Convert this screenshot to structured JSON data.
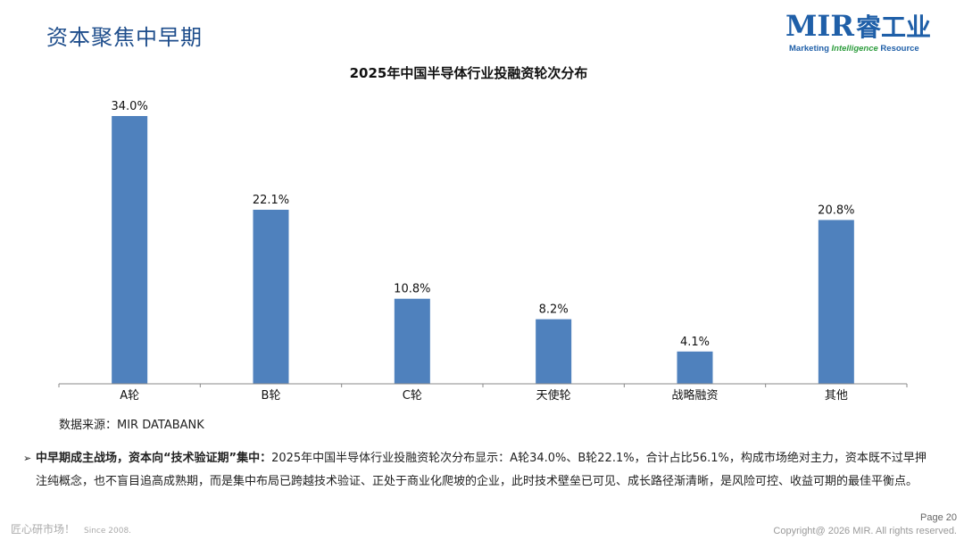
{
  "page": {
    "title": "资本聚焦中早期",
    "logo": {
      "mir": "MIR",
      "cn": "睿工业",
      "sub_pre": "Marketing",
      "sub_intel": "Intelligence",
      "sub_post": "Resource"
    },
    "source": "数据来源：MIR DATABANK",
    "summary": {
      "lead": "中早期成主战场，资本向“技术验证期”集中：",
      "line1": "2025年中国半导体行业投融资轮次分布显示：A轮34.0%、B轮22.1%，合计占比56.1%，构成市场绝对主力，资本既不过早押",
      "line2": "注纯概念，也不盲目追高成熟期，而是集中布局已跨越技术验证、正处于商业化爬坡的企业，此时技术壁垒已可见、成长路径渐清晰，是风险可控、收益可期的最佳平衡点。"
    },
    "footer": {
      "brand": "匠心研市场！",
      "since": "Since 2008.",
      "page": "Page 20",
      "copyright": "Copyright@ 2026 MIR. All rights reserved."
    },
    "colors": {
      "bar": "#4f81bd",
      "title": "#1f4e8c"
    }
  },
  "chart_data": {
    "type": "bar",
    "title": "2025年中国半导体行业投融资轮次分布",
    "categories": [
      "A轮",
      "B轮",
      "C轮",
      "天使轮",
      "战略融资",
      "其他"
    ],
    "values": [
      34.0,
      22.1,
      10.8,
      8.2,
      4.1,
      20.8
    ],
    "value_labels": [
      "34.0%",
      "22.1%",
      "10.8%",
      "8.2%",
      "4.1%",
      "20.8%"
    ],
    "ylim": [
      0,
      34.0
    ],
    "grid": false,
    "legend": false,
    "xlabel": "",
    "ylabel": ""
  }
}
